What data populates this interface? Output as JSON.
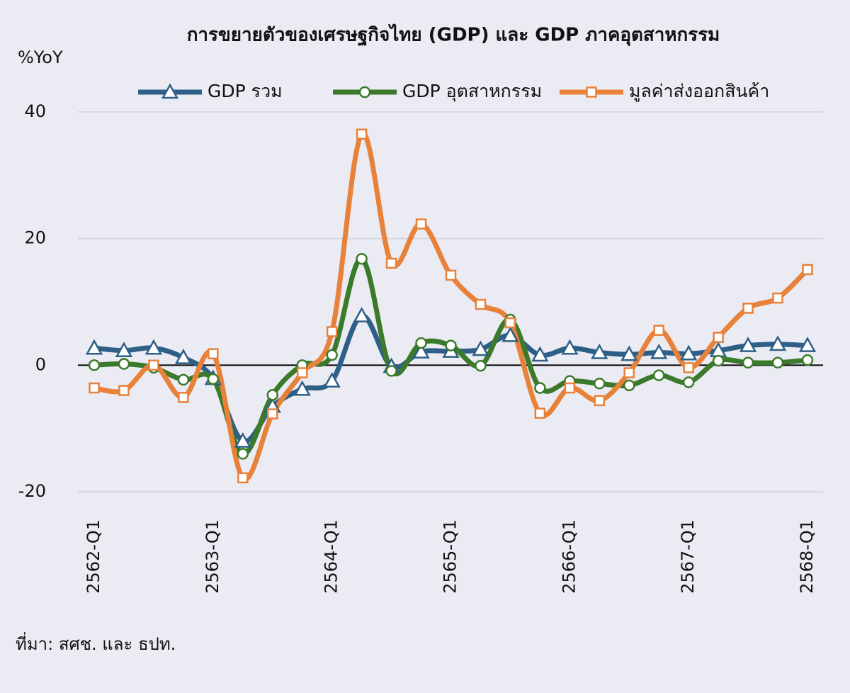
{
  "chart_data": {
    "type": "line",
    "title": "การขยายตัวของเศรษฐกิจไทย (GDP) และ GDP ภาคอุตสาหกรรม",
    "y_label": "%YoY",
    "source": "ที่มา: สศช. และ ธปท.",
    "categories": [
      "2562-Q1",
      null,
      null,
      null,
      "2563-Q1",
      null,
      null,
      null,
      "2564-Q1",
      null,
      null,
      null,
      "2565-Q1",
      null,
      null,
      null,
      "2566-Q1",
      null,
      null,
      null,
      "2567-Q1",
      null,
      null,
      null,
      "2568-Q1"
    ],
    "series": [
      {
        "name": "GDP รวม",
        "color": "#2e5f86",
        "marker": "triangle",
        "values": [
          2.7,
          2.3,
          2.7,
          1.2,
          -2.1,
          -12.0,
          -6.5,
          -3.8,
          -2.5,
          7.8,
          -0.2,
          2.1,
          2.2,
          2.5,
          4.7,
          1.6,
          2.7,
          2.0,
          1.7,
          2.0,
          1.8,
          2.3,
          3.1,
          3.3,
          3.1
        ]
      },
      {
        "name": "GDP อุตสาหกรรม",
        "color": "#3a7a2a",
        "marker": "circle",
        "values": [
          0,
          0.2,
          -0.4,
          -2.3,
          -2.2,
          -14.0,
          -4.7,
          0,
          1.6,
          16.8,
          -0.9,
          3.5,
          3.1,
          -0.1,
          7.2,
          -3.6,
          -2.5,
          -2.9,
          -3.2,
          -1.6,
          -2.7,
          0.7,
          0.4,
          0.4,
          0.8
        ]
      },
      {
        "name": "มูลค่าส่งออกสินค้า",
        "color": "#e8813a",
        "marker": "square",
        "values": [
          -3.6,
          -4.0,
          0,
          -5.1,
          1.8,
          -17.8,
          -7.7,
          -1.2,
          5.3,
          36.5,
          16.1,
          22.3,
          14.2,
          9.6,
          6.7,
          -7.6,
          -3.6,
          -5.6,
          -1.2,
          5.5,
          -0.4,
          4.4,
          9.0,
          10.6,
          15.1
        ]
      }
    ],
    "ylim": [
      -20,
      40
    ],
    "yticks": [
      40,
      20,
      0,
      -20
    ],
    "grid": true,
    "ytick_negative_color": "#e03030",
    "legend": "top",
    "smooth": true
  }
}
